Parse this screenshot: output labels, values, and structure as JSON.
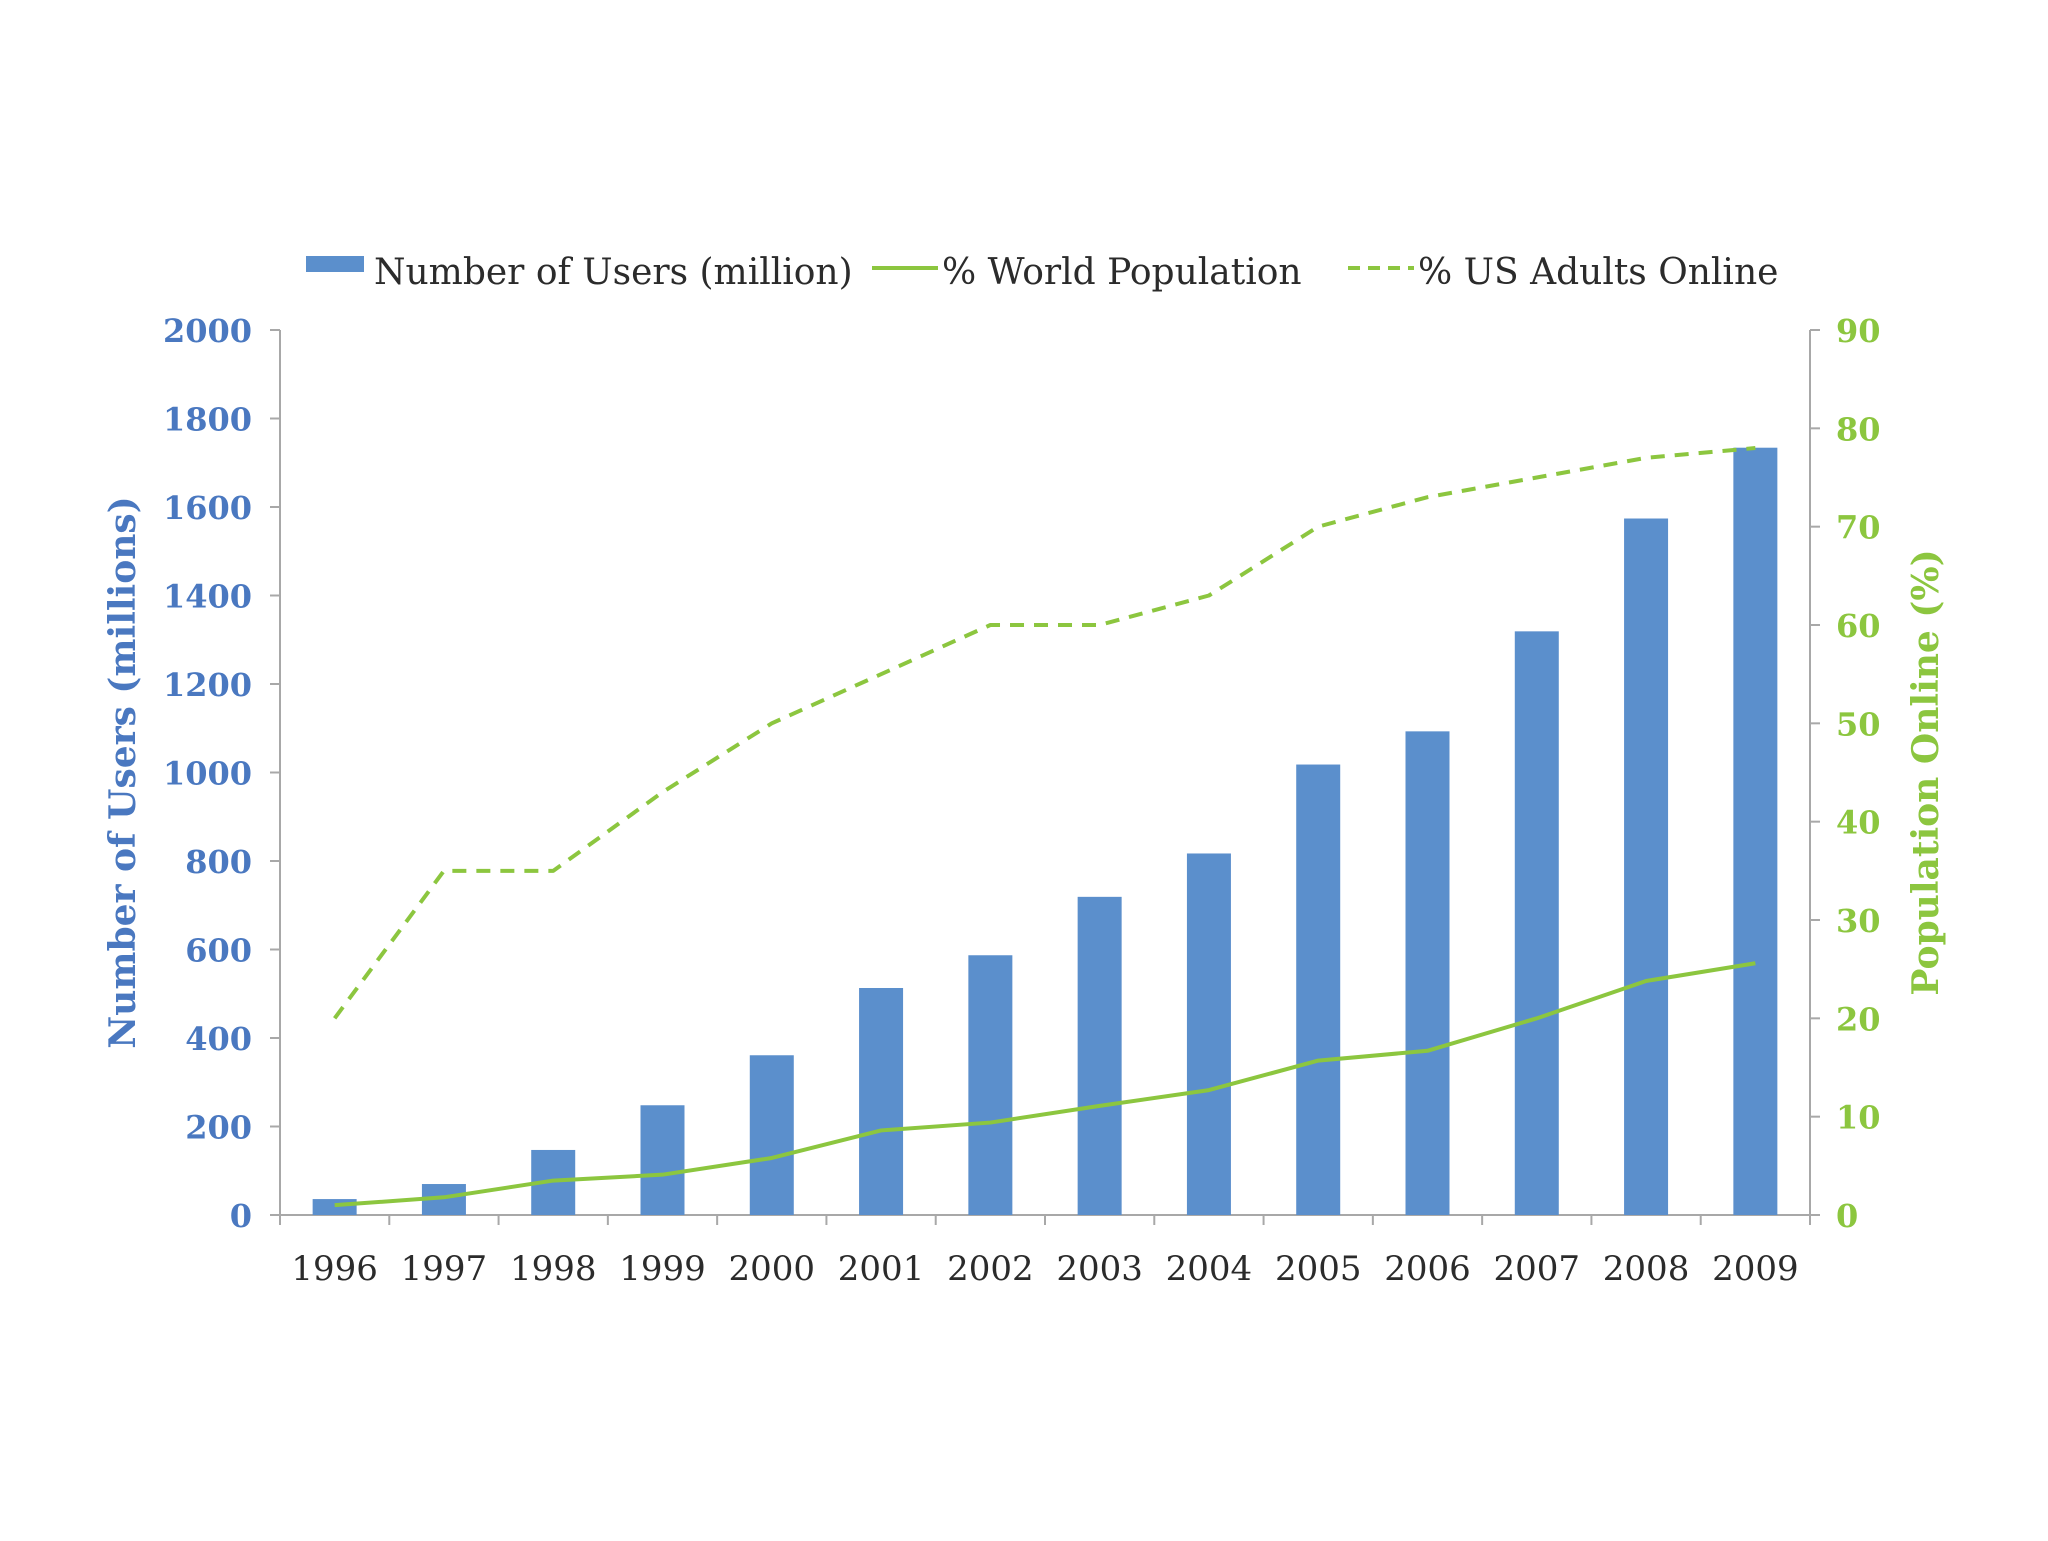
{
  "chart_data": {
    "type": "bar+line",
    "categories": [
      "1996",
      "1997",
      "1998",
      "1999",
      "2000",
      "2001",
      "2002",
      "2003",
      "2004",
      "2005",
      "2006",
      "2007",
      "2008",
      "2009"
    ],
    "bar_series": {
      "name": "Number of Users (million)",
      "axis": "left",
      "values": [
        36,
        70,
        147,
        248,
        361,
        513,
        587,
        719,
        817,
        1018,
        1093,
        1319,
        1574,
        1734
      ]
    },
    "line_series": [
      {
        "name": "% World Population",
        "axis": "right",
        "style": "solid",
        "values": [
          1.0,
          1.8,
          3.5,
          4.1,
          5.8,
          8.6,
          9.4,
          11.1,
          12.7,
          15.7,
          16.7,
          20.0,
          23.8,
          25.6
        ]
      },
      {
        "name": "% US Adults Online",
        "axis": "right",
        "style": "dashed",
        "values": [
          20,
          35,
          35,
          43,
          50,
          55,
          60,
          60,
          63,
          70,
          73,
          75,
          77,
          78
        ]
      }
    ],
    "y_left": {
      "label": "Number of Users (millions)",
      "range": [
        0,
        2000
      ],
      "ticks": [
        "0",
        "200",
        "400",
        "600",
        "800",
        "1000",
        "1200",
        "1400",
        "1600",
        "1800",
        "2000"
      ]
    },
    "y_right": {
      "label": "Population Online (%)",
      "range": [
        0,
        90
      ],
      "ticks": [
        "0",
        "10",
        "20",
        "30",
        "40",
        "50",
        "60",
        "70",
        "80",
        "90"
      ]
    },
    "xlabel": "",
    "title": "",
    "legend_position": "top",
    "grid": false
  },
  "colors": {
    "bar": "#5b8fcc",
    "line": "#8cc63f",
    "left_axis_text": "#4a78c0",
    "right_axis_text": "#8cc63f",
    "axis_line": "#a8a8a8"
  }
}
